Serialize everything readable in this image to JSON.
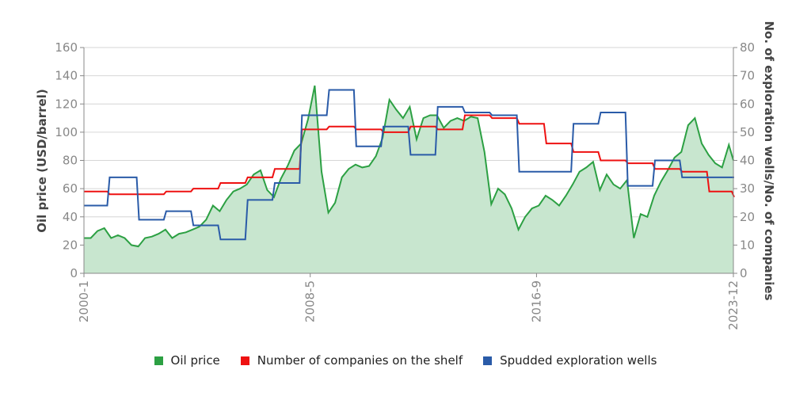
{
  "chart_data": {
    "type": "line",
    "title": "",
    "xlabel": "",
    "ylabel": "Oil price (USD/barrel)",
    "ylabel_right": "No. of exploration wells/No. of companies",
    "ylim": [
      0,
      160
    ],
    "ylim_right": [
      0,
      80
    ],
    "yticks": [
      0,
      20,
      40,
      60,
      80,
      100,
      120,
      140,
      160
    ],
    "yticks_right": [
      0,
      10,
      20,
      30,
      40,
      50,
      60,
      70,
      80
    ],
    "x_range": [
      "2000-1",
      "2023-12"
    ],
    "xticks": [
      "2000-1",
      "2008-5",
      "2016-9",
      "2023-12"
    ],
    "grid": true,
    "legend_position": "bottom",
    "series": [
      {
        "name": "Oil price",
        "axis": "left",
        "color": "#2ca043",
        "fill": "#c8e6cf",
        "style": "area",
        "x": [
          "2000-1",
          "2000-4",
          "2000-7",
          "2000-10",
          "2001-1",
          "2001-4",
          "2001-7",
          "2001-10",
          "2002-1",
          "2002-4",
          "2002-7",
          "2002-10",
          "2003-1",
          "2003-4",
          "2003-7",
          "2003-10",
          "2004-1",
          "2004-4",
          "2004-7",
          "2004-10",
          "2005-1",
          "2005-4",
          "2005-7",
          "2005-10",
          "2006-1",
          "2006-4",
          "2006-7",
          "2006-10",
          "2007-1",
          "2007-4",
          "2007-7",
          "2007-10",
          "2008-1",
          "2008-4",
          "2008-7",
          "2008-10",
          "2009-1",
          "2009-4",
          "2009-7",
          "2009-10",
          "2010-1",
          "2010-4",
          "2010-7",
          "2010-10",
          "2011-1",
          "2011-4",
          "2011-7",
          "2011-10",
          "2012-1",
          "2012-4",
          "2012-7",
          "2012-10",
          "2013-1",
          "2013-4",
          "2013-7",
          "2013-10",
          "2014-1",
          "2014-4",
          "2014-7",
          "2014-10",
          "2015-1",
          "2015-4",
          "2015-7",
          "2015-10",
          "2016-1",
          "2016-4",
          "2016-7",
          "2016-10",
          "2017-1",
          "2017-4",
          "2017-7",
          "2017-10",
          "2018-1",
          "2018-4",
          "2018-7",
          "2018-10",
          "2019-1",
          "2019-4",
          "2019-7",
          "2019-10",
          "2020-1",
          "2020-4",
          "2020-7",
          "2020-10",
          "2021-1",
          "2021-4",
          "2021-7",
          "2021-10",
          "2022-1",
          "2022-4",
          "2022-7",
          "2022-10",
          "2023-1",
          "2023-4",
          "2023-7",
          "2023-10",
          "2023-12"
        ],
        "values": [
          25,
          25,
          30,
          32,
          25,
          27,
          25,
          20,
          19,
          25,
          26,
          28,
          31,
          25,
          28,
          29,
          31,
          33,
          38,
          48,
          44,
          52,
          58,
          60,
          63,
          70,
          73,
          59,
          54,
          67,
          76,
          87,
          92,
          109,
          133,
          72,
          43,
          50,
          68,
          74,
          77,
          75,
          76,
          83,
          96,
          123,
          116,
          110,
          118,
          95,
          110,
          112,
          112,
          103,
          108,
          110,
          108,
          111,
          110,
          86,
          49,
          60,
          56,
          46,
          31,
          40,
          46,
          48,
          55,
          52,
          48,
          55,
          63,
          72,
          75,
          79,
          59,
          70,
          63,
          60,
          66,
          25,
          42,
          40,
          55,
          65,
          73,
          82,
          86,
          105,
          110,
          92,
          84,
          78,
          75,
          91,
          80
        ]
      },
      {
        "name": "Number of companies on the shelf",
        "axis": "right",
        "color": "#ee1111",
        "style": "step",
        "x": [
          "2000-1",
          "2000-12",
          "2002-1",
          "2003-1",
          "2004-1",
          "2005-1",
          "2006-1",
          "2007-1",
          "2008-1",
          "2009-1",
          "2010-1",
          "2011-1",
          "2012-1",
          "2013-1",
          "2014-1",
          "2015-1",
          "2016-1",
          "2017-1",
          "2018-1",
          "2019-1",
          "2020-1",
          "2021-1",
          "2022-1",
          "2023-1",
          "2023-12"
        ],
        "values": [
          29,
          28,
          28,
          29,
          30,
          32,
          34,
          37,
          51,
          52,
          51,
          50,
          52,
          51,
          56,
          55,
          53,
          46,
          43,
          40,
          39,
          37,
          36,
          29,
          27
        ]
      },
      {
        "name": "Spudded exploration wells",
        "axis": "right",
        "color": "#2a5ba8",
        "style": "step",
        "x": [
          "2000-1",
          "2000-12",
          "2002-1",
          "2003-1",
          "2004-1",
          "2005-1",
          "2006-1",
          "2007-1",
          "2008-1",
          "2009-1",
          "2010-1",
          "2011-1",
          "2012-1",
          "2013-1",
          "2014-1",
          "2015-1",
          "2016-1",
          "2017-1",
          "2018-1",
          "2019-1",
          "2020-1",
          "2021-1",
          "2022-1",
          "2023-12"
        ],
        "values": [
          24,
          34,
          19,
          22,
          17,
          12,
          26,
          32,
          56,
          65,
          45,
          52,
          42,
          59,
          57,
          56,
          36,
          36,
          53,
          57,
          31,
          40,
          34,
          34
        ]
      }
    ]
  },
  "legend": {
    "items": [
      {
        "label": "Oil price",
        "color": "#2ca043"
      },
      {
        "label": "Number of companies on the shelf",
        "color": "#ee1111"
      },
      {
        "label": "Spudded exploration wells",
        "color": "#2a5ba8"
      }
    ]
  },
  "axes": {
    "left_title": "Oil price (USD/barrel)",
    "right_title": "No. of exploration wells/No. of companies"
  }
}
